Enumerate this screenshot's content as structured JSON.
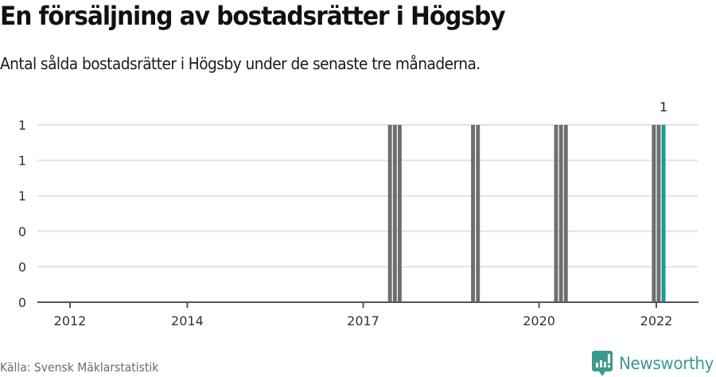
{
  "header": {
    "title": "En försäljning av bostadsrätter i Högsby",
    "subtitle": "Antal sålda bostadsrätter i Högsby under de senaste tre månaderna."
  },
  "footer": {
    "source": "Källa: Svensk Mäklarstatistik",
    "brand": "Newsworthy",
    "brand_icon": "newsworthy-logo-icon"
  },
  "colors": {
    "bar_default": "#6e6d72",
    "bar_highlight": "#1a9a92",
    "grid": "#e2e2e2",
    "axis": "#555555",
    "brand": "#3a9a8f"
  },
  "chart_data": {
    "type": "bar",
    "title": "En försäljning av bostadsrätter i Högsby",
    "subtitle": "Antal sålda bostadsrätter i Högsby under de senaste tre månaderna.",
    "xlabel": "",
    "ylabel": "",
    "y_tick_labels": [
      "0",
      "0",
      "0",
      "1",
      "1",
      "1"
    ],
    "ylim": [
      0,
      1
    ],
    "x_tick_labels": [
      "2012",
      "2014",
      "2017",
      "2020",
      "2022"
    ],
    "grid": true,
    "legend": null,
    "annotation": {
      "label": "1",
      "target": "2022-02"
    },
    "categories": [
      "2017-06",
      "2017-07",
      "2017-08",
      "2018-11",
      "2018-12",
      "2020-04",
      "2020-05",
      "2020-06",
      "2021-12",
      "2022-01",
      "2022-02"
    ],
    "values": [
      1,
      1,
      1,
      1,
      1,
      1,
      1,
      1,
      1,
      1,
      1
    ],
    "highlight": [
      "2022-02"
    ],
    "x_range": [
      "2011-06",
      "2023-03"
    ]
  }
}
